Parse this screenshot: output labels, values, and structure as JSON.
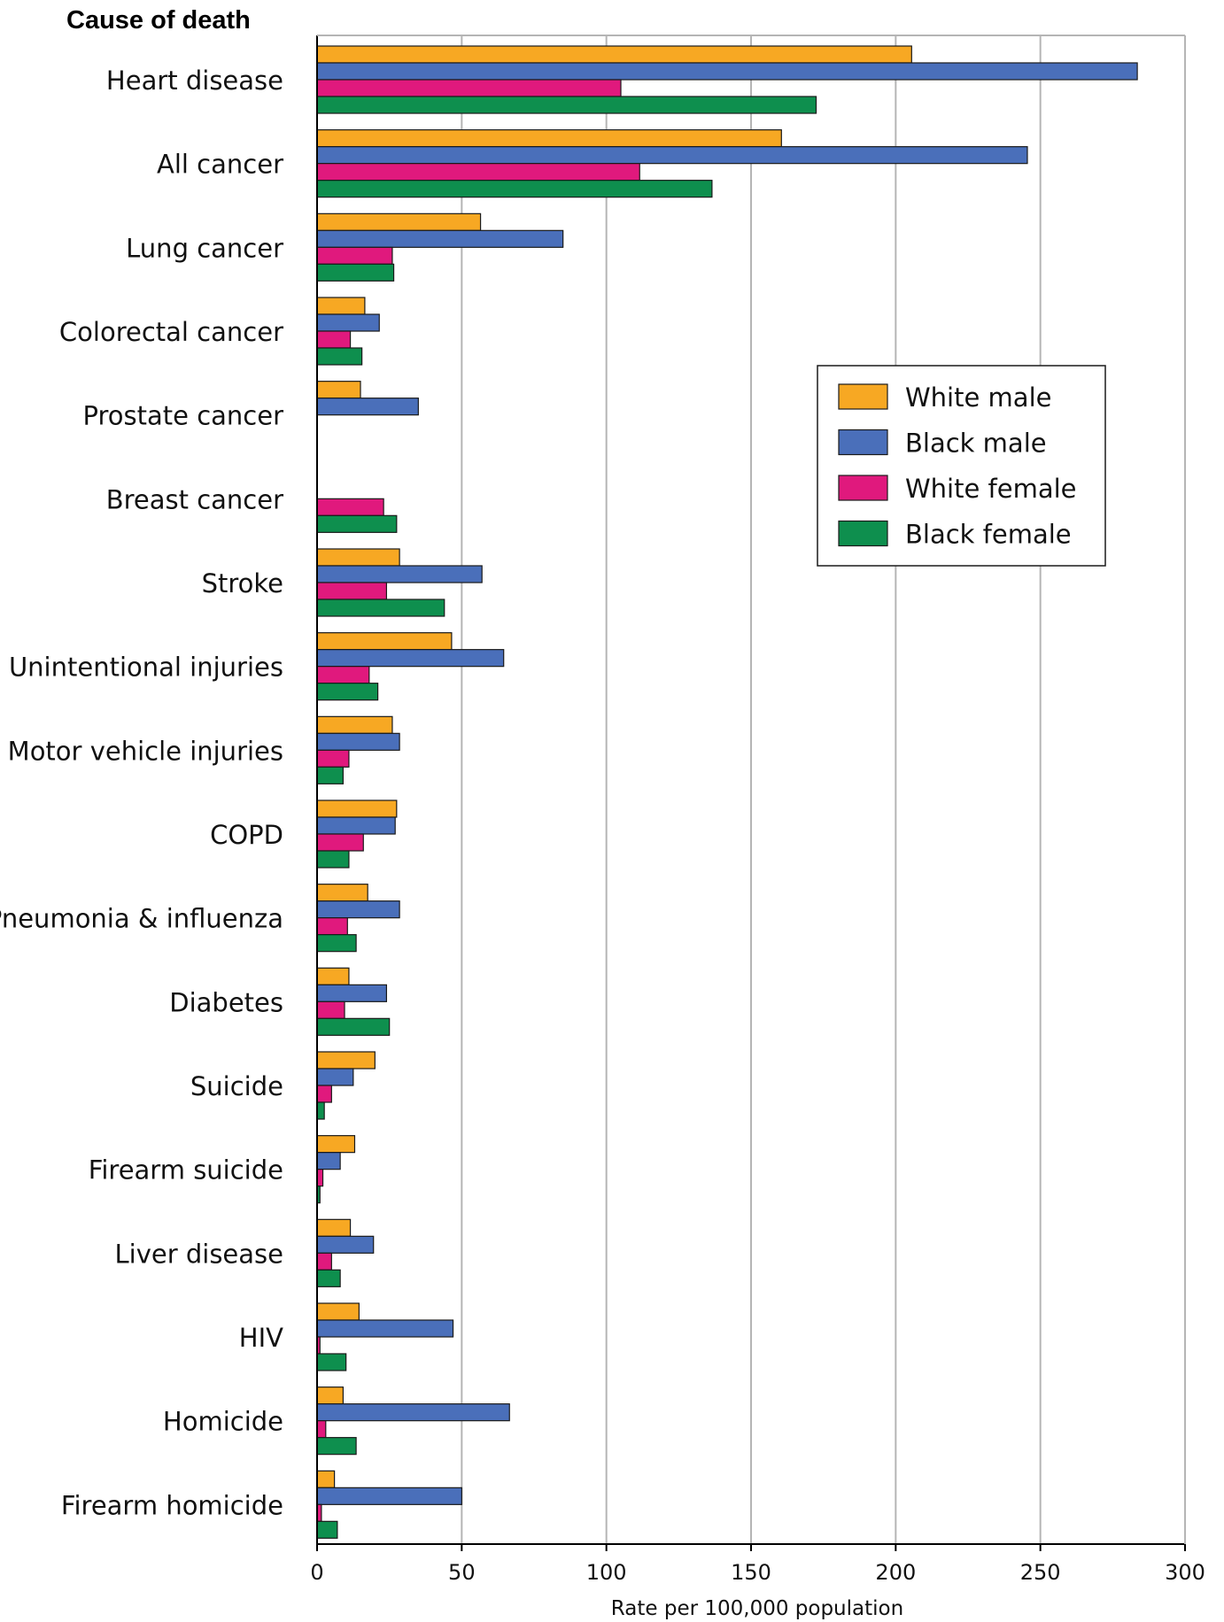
{
  "chart_data": {
    "type": "bar",
    "orientation": "horizontal",
    "title": "Cause of death",
    "xlabel": "Rate per 100,000 population",
    "ylabel": "",
    "xlim": [
      0,
      300
    ],
    "xticks": [
      0,
      50,
      100,
      150,
      200,
      250,
      300
    ],
    "grid": true,
    "legend_position": "top-right",
    "categories": [
      "Heart disease",
      "All cancer",
      "Lung cancer",
      "Colorectal cancer",
      "Prostate cancer",
      "Breast cancer",
      "Stroke",
      "Unintentional injuries",
      "Motor vehicle injuries",
      "COPD",
      "Pneumonia & influenza",
      "Diabetes",
      "Suicide",
      "Firearm suicide",
      "Liver disease",
      "HIV",
      "Homicide",
      "Firearm homicide"
    ],
    "series": [
      {
        "name": "White male",
        "color": "#F7A823",
        "values": [
          205.5,
          160.5,
          56.5,
          16.5,
          15.0,
          null,
          28.5,
          46.5,
          26.0,
          27.5,
          17.5,
          11.0,
          20.0,
          13.0,
          11.5,
          14.5,
          9.0,
          6.0
        ]
      },
      {
        "name": "Black male",
        "color": "#4A6FBA",
        "values": [
          283.5,
          245.5,
          85.0,
          21.5,
          35.0,
          null,
          57.0,
          64.5,
          28.5,
          27.0,
          28.5,
          24.0,
          12.5,
          8.0,
          19.5,
          47.0,
          66.5,
          50.0
        ]
      },
      {
        "name": "White female",
        "color": "#E0197D",
        "values": [
          105.0,
          111.5,
          26.0,
          11.5,
          null,
          23.0,
          24.0,
          18.0,
          11.0,
          16.0,
          10.5,
          9.5,
          5.0,
          2.0,
          5.0,
          1.0,
          3.0,
          1.5
        ]
      },
      {
        "name": "Black female",
        "color": "#0E8F4E",
        "values": [
          172.5,
          136.5,
          26.5,
          15.5,
          null,
          27.5,
          44.0,
          21.0,
          9.0,
          11.0,
          13.5,
          25.0,
          2.5,
          1.0,
          8.0,
          10.0,
          13.5,
          7.0
        ]
      }
    ]
  }
}
